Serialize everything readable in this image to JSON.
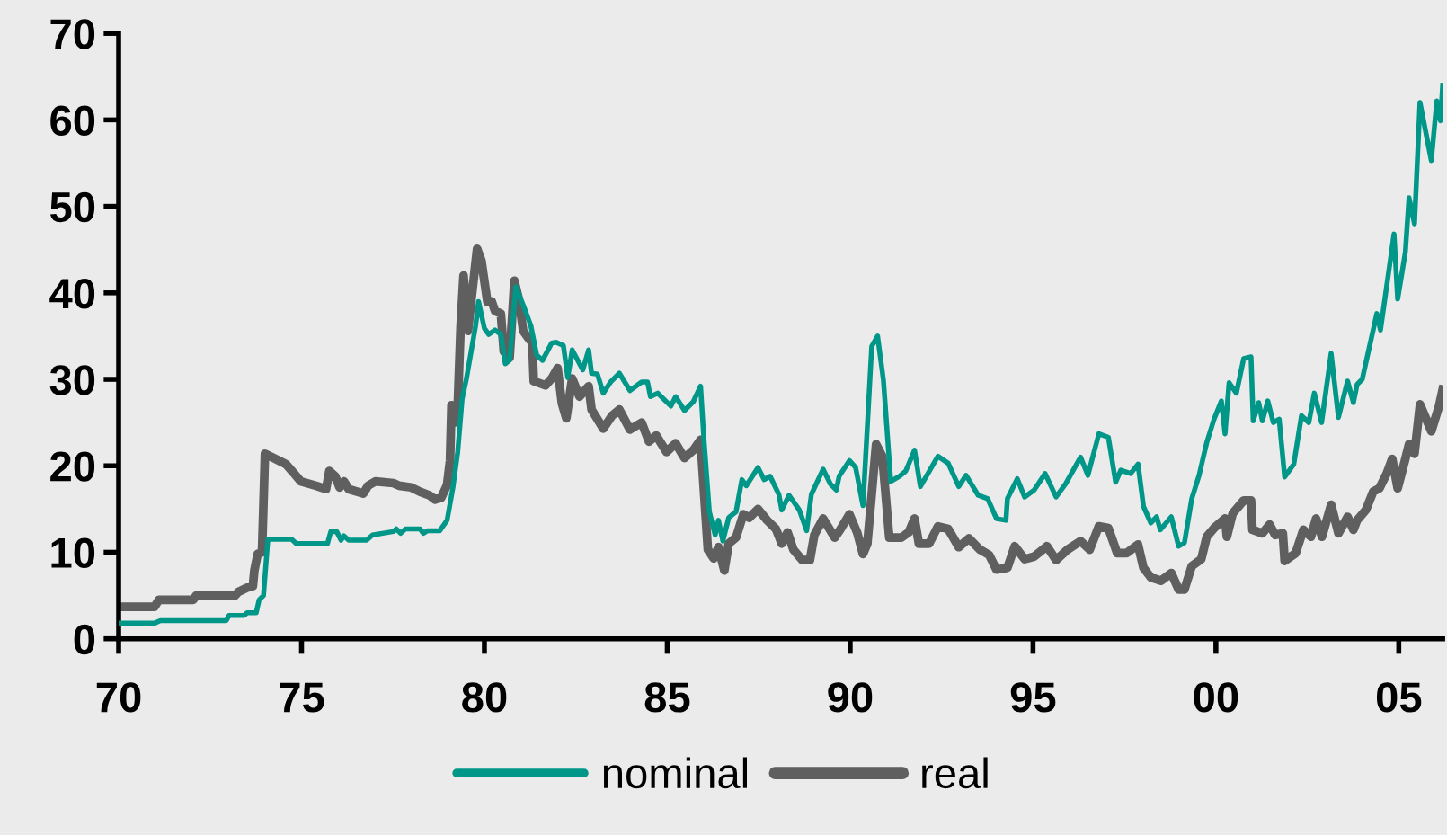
{
  "chart_data": {
    "type": "line",
    "xlim": [
      1970,
      2006.2
    ],
    "ylim": [
      0,
      70
    ],
    "xticks": [
      {
        "value": 1970,
        "label": "70"
      },
      {
        "value": 1975,
        "label": "75"
      },
      {
        "value": 1980,
        "label": "80"
      },
      {
        "value": 1985,
        "label": "85"
      },
      {
        "value": 1990,
        "label": "90"
      },
      {
        "value": 1995,
        "label": "95"
      },
      {
        "value": 2000,
        "label": "00"
      },
      {
        "value": 2005,
        "label": "05"
      }
    ],
    "yticks": [
      0,
      10,
      20,
      30,
      40,
      50,
      60,
      70
    ],
    "grid": false,
    "legend": "bottom",
    "marker": "none",
    "line_style": "solid",
    "series": [
      {
        "name": "nominal",
        "color": "#009688",
        "x": [
          1970,
          1970.98,
          1971.14,
          1972.94,
          1973.02,
          1973.43,
          1973.51,
          1973.76,
          1973.84,
          1973.96,
          1974.08,
          1974.73,
          1974.86,
          1975.71,
          1975.8,
          1975.96,
          1976.08,
          1976.16,
          1976.29,
          1976.78,
          1976.94,
          1977.51,
          1977.59,
          1977.71,
          1977.84,
          1978.24,
          1978.33,
          1978.45,
          1978.78,
          1978.98,
          1979.14,
          1979.27,
          1979.39,
          1979.51,
          1979.76,
          1979.84,
          1980,
          1980.12,
          1980.29,
          1980.45,
          1980.57,
          1980.69,
          1980.86,
          1981.06,
          1981.27,
          1981.43,
          1981.59,
          1981.84,
          1981.96,
          1982.16,
          1982.28,
          1982.4,
          1982.69,
          1982.85,
          1982.93,
          1983.09,
          1983.25,
          1983.45,
          1983.69,
          1983.98,
          1984.3,
          1984.46,
          1984.54,
          1984.74,
          1985.1,
          1985.23,
          1985.47,
          1985.71,
          1985.91,
          1985.99,
          1986.15,
          1986.31,
          1986.4,
          1986.52,
          1986.68,
          1986.88,
          1987.04,
          1987.16,
          1987.48,
          1987.65,
          1987.81,
          1988.05,
          1988.13,
          1988.33,
          1988.61,
          1988.81,
          1988.94,
          1989.26,
          1989.46,
          1989.62,
          1989.7,
          1989.98,
          1990.15,
          1990.35,
          1990.59,
          1990.75,
          1990.91,
          1991.11,
          1991.35,
          1991.52,
          1991.76,
          1991.92,
          1992.4,
          1992.68,
          1992.97,
          1993.17,
          1993.5,
          1993.76,
          1994.0,
          1994.26,
          1994.3,
          1994.57,
          1994.77,
          1995.03,
          1995.33,
          1995.63,
          1995.89,
          1996.3,
          1996.5,
          1996.8,
          1997.06,
          1997.26,
          1997.4,
          1997.67,
          1997.87,
          1998.02,
          1998.22,
          1998.38,
          1998.48,
          1998.78,
          1998.98,
          1999.14,
          1999.34,
          1999.54,
          1999.75,
          1999.95,
          2000.15,
          2000.25,
          2000.36,
          2000.56,
          2000.76,
          2000.96,
          2001.02,
          2001.17,
          2001.27,
          2001.42,
          2001.57,
          2001.73,
          2001.88,
          2002.13,
          2002.34,
          2002.54,
          2002.69,
          2002.89,
          2003.15,
          2003.35,
          2003.6,
          2003.76,
          2003.86,
          2004.0,
          2004.2,
          2004.4,
          2004.5,
          2004.87,
          2004.97,
          2005.18,
          2005.28,
          2005.43,
          2005.58,
          2005.89,
          2006.04,
          2006.14,
          2006.2
        ],
        "values": [
          1.8,
          1.8,
          2.1,
          2.1,
          2.7,
          2.7,
          3.0,
          3.0,
          4.5,
          5,
          11.5,
          11.5,
          11,
          11,
          12.4,
          12.4,
          11.4,
          11.9,
          11.4,
          11.4,
          12,
          12.4,
          12.7,
          12.2,
          12.7,
          12.7,
          12.2,
          12.5,
          12.5,
          13.7,
          17.5,
          21.6,
          27.7,
          30.1,
          36.2,
          39,
          35.9,
          35.2,
          35.7,
          35.2,
          31.8,
          32.2,
          40.7,
          38.6,
          36.2,
          32.8,
          32.2,
          34.2,
          34.3,
          33.9,
          30.2,
          33.4,
          31.1,
          33.4,
          30.7,
          30.6,
          28.4,
          29.7,
          30.7,
          28.7,
          29.7,
          29.7,
          28,
          28.4,
          26.9,
          28,
          26.4,
          27.4,
          29.2,
          23.8,
          14.7,
          12,
          13.7,
          11.3,
          14,
          14.7,
          18.4,
          17.7,
          19.8,
          18.4,
          18.8,
          16.7,
          14.9,
          16.6,
          14.9,
          12.5,
          16.7,
          19.6,
          17.9,
          17.2,
          18.8,
          20.6,
          19.8,
          15.4,
          33.8,
          35,
          29.9,
          18.2,
          18.8,
          19.4,
          21.8,
          17.6,
          21.1,
          20.3,
          17.6,
          18.9,
          16.6,
          16.2,
          13.9,
          13.7,
          16.2,
          18.5,
          16.4,
          17.2,
          19.1,
          16.4,
          17.9,
          21,
          18.9,
          23.7,
          23.3,
          18.1,
          19.5,
          19.1,
          20.2,
          15.3,
          13.4,
          14.1,
          12.6,
          14.1,
          10.7,
          11.1,
          16.2,
          18.9,
          22.7,
          25.4,
          27.5,
          23.7,
          29.6,
          28.4,
          32.4,
          32.6,
          25.2,
          27.3,
          25.2,
          27.5,
          25,
          25.4,
          18.7,
          20.2,
          25.8,
          25,
          28.4,
          25,
          33,
          25.6,
          29.8,
          27.3,
          29.4,
          30,
          33.8,
          37.6,
          35.7,
          46.8,
          39.3,
          44.7,
          51,
          48,
          62,
          55.3,
          62.2,
          59.9,
          64
        ]
      },
      {
        "name": "real",
        "color": "#5f5f5f",
        "x": [
          1970,
          1970.98,
          1971.1,
          1972.04,
          1972.12,
          1973.18,
          1973.27,
          1973.51,
          1973.67,
          1973.71,
          1973.8,
          1973.92,
          1974.0,
          1974.24,
          1974.57,
          1974.78,
          1974.98,
          1975.39,
          1975.67,
          1975.76,
          1975.92,
          1976.04,
          1976.16,
          1976.29,
          1976.69,
          1976.82,
          1977.02,
          1977.51,
          1977.67,
          1978.0,
          1978.24,
          1978.49,
          1978.65,
          1978.82,
          1978.98,
          1979.06,
          1979.1,
          1979.18,
          1979.27,
          1979.35,
          1979.43,
          1979.55,
          1979.8,
          1979.92,
          1980.08,
          1980.2,
          1980.29,
          1980.45,
          1980.53,
          1980.69,
          1980.82,
          1980.94,
          1981.06,
          1981.18,
          1981.31,
          1981.35,
          1981.67,
          1981.84,
          1982.0,
          1982.12,
          1982.24,
          1982.4,
          1982.6,
          1982.85,
          1982.93,
          1983.25,
          1983.49,
          1983.69,
          1983.98,
          1984.3,
          1984.5,
          1984.7,
          1984.98,
          1985.23,
          1985.47,
          1985.71,
          1985.91,
          1986.11,
          1986.27,
          1986.4,
          1986.56,
          1986.68,
          1986.88,
          1987.08,
          1987.24,
          1987.48,
          1987.73,
          1987.97,
          1988.13,
          1988.29,
          1988.45,
          1988.69,
          1988.9,
          1989.02,
          1989.26,
          1989.58,
          1989.74,
          1989.98,
          1990.19,
          1990.35,
          1990.47,
          1990.71,
          1990.88,
          1991.07,
          1991.4,
          1991.6,
          1991.76,
          1991.88,
          1992.16,
          1992.4,
          1992.68,
          1992.97,
          1993.25,
          1993.55,
          1993.8,
          1994.0,
          1994.3,
          1994.5,
          1994.77,
          1995.03,
          1995.38,
          1995.63,
          1995.94,
          1996.3,
          1996.55,
          1996.8,
          1997.06,
          1997.3,
          1997.56,
          1997.87,
          1998.02,
          1998.22,
          1998.5,
          1998.78,
          1998.98,
          1999.14,
          1999.34,
          1999.6,
          1999.75,
          1999.95,
          2000.25,
          2000.3,
          2000.46,
          2000.76,
          2000.96,
          2001.0,
          2001.27,
          2001.47,
          2001.62,
          2001.83,
          2001.88,
          2002.18,
          2002.39,
          2002.6,
          2002.74,
          2002.9,
          2003.15,
          2003.35,
          2003.6,
          2003.76,
          2003.86,
          2004.1,
          2004.3,
          2004.47,
          2004.67,
          2004.82,
          2004.97,
          2005.18,
          2005.28,
          2005.43,
          2005.58,
          2005.89,
          2006.1,
          2006.2
        ],
        "values": [
          3.7,
          3.7,
          4.5,
          4.5,
          5,
          5,
          5.4,
          5.9,
          6.1,
          7.9,
          9.8,
          10,
          21.4,
          20.9,
          20.2,
          19.2,
          18.2,
          17.7,
          17.3,
          19.4,
          18.8,
          17.5,
          18.2,
          17.3,
          16.8,
          17.7,
          18.2,
          18,
          17.7,
          17.5,
          17,
          16.6,
          16.1,
          16.3,
          17.8,
          20.6,
          27,
          25,
          26.7,
          36.2,
          42,
          35.6,
          45.1,
          43.7,
          39,
          39,
          37.9,
          37.6,
          33.2,
          32.5,
          41.4,
          39.3,
          35.6,
          34.9,
          34.2,
          29.8,
          29.3,
          30.1,
          31.3,
          27.2,
          25.5,
          30.1,
          28,
          29.2,
          26.5,
          24.3,
          25.8,
          26.5,
          24.2,
          25,
          22.8,
          23.5,
          21.6,
          22.6,
          20.9,
          21.8,
          23,
          10.3,
          9.3,
          10.6,
          7.9,
          11,
          11.7,
          14.4,
          14,
          15,
          13.7,
          12.7,
          11,
          12.3,
          10.3,
          9.1,
          9.1,
          12,
          13.9,
          11.7,
          12.7,
          14.4,
          12.3,
          9.8,
          11,
          22.5,
          21.1,
          11.7,
          11.7,
          12.3,
          13.9,
          11,
          11,
          13,
          12.7,
          10.6,
          11.6,
          10.3,
          9.7,
          8,
          8.2,
          10.7,
          9.2,
          9.5,
          10.7,
          9.1,
          10.3,
          11.3,
          10.3,
          13,
          12.8,
          9.9,
          9.9,
          10.9,
          8.2,
          7.1,
          6.7,
          7.6,
          5.7,
          5.7,
          8.4,
          9.2,
          11.8,
          12.8,
          13.9,
          11.8,
          14.5,
          16,
          16,
          12.6,
          12.2,
          13.2,
          12,
          12.2,
          9,
          9.9,
          12.6,
          11.8,
          13.9,
          11.8,
          15.5,
          12.2,
          14.1,
          12.6,
          13.7,
          14.9,
          17,
          17.4,
          19.1,
          20.8,
          17.4,
          20.8,
          22.5,
          21.4,
          27.1,
          24,
          26.9,
          28.8
        ]
      }
    ]
  }
}
